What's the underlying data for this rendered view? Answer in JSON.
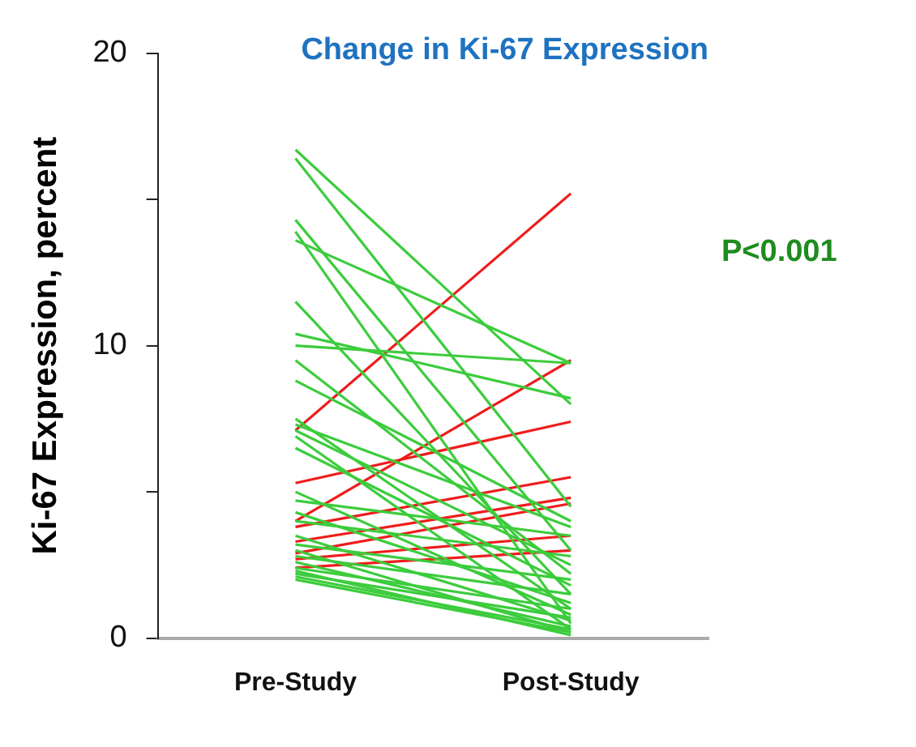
{
  "chart_data": {
    "type": "line",
    "title": "Change in Ki-67 Expression",
    "ylabel": "Ki-67 Expression, percent",
    "annotations": [
      "P<0.001"
    ],
    "categories": [
      "Pre-Study",
      "Post-Study"
    ],
    "ylim": [
      0,
      20
    ],
    "yticks": [
      0,
      {
        "value": 5,
        "label": null
      },
      10,
      {
        "value": 15,
        "label": null
      },
      20
    ],
    "grid": false,
    "legend": false,
    "marker": "none",
    "line_style": "solid",
    "series": [
      {
        "color": "#3ccc3c",
        "values": [
          16.7,
          8.0
        ]
      },
      {
        "color": "#3ccc3c",
        "values": [
          16.4,
          4.5
        ]
      },
      {
        "color": "#3ccc3c",
        "values": [
          14.3,
          3.0
        ]
      },
      {
        "color": "#3ccc3c",
        "values": [
          13.9,
          0.5
        ]
      },
      {
        "color": "#3ccc3c",
        "values": [
          13.6,
          9.4
        ]
      },
      {
        "color": "#3ccc3c",
        "values": [
          11.5,
          1.5
        ]
      },
      {
        "color": "#3ccc3c",
        "values": [
          10.4,
          8.2
        ]
      },
      {
        "color": "#3ccc3c",
        "values": [
          10.0,
          9.4
        ]
      },
      {
        "color": "#3ccc3c",
        "values": [
          9.5,
          2.2
        ]
      },
      {
        "color": "#3ccc3c",
        "values": [
          8.8,
          4.0
        ]
      },
      {
        "color": "#3ccc3c",
        "values": [
          7.5,
          1.0
        ]
      },
      {
        "color": "#3ccc3c",
        "values": [
          7.3,
          3.8
        ]
      },
      {
        "color": "#3ccc3c",
        "values": [
          7.1,
          2.5
        ]
      },
      {
        "color": "#3ccc3c",
        "values": [
          6.9,
          0.3
        ]
      },
      {
        "color": "#3ccc3c",
        "values": [
          6.5,
          1.8
        ]
      },
      {
        "color": "#3ccc3c",
        "values": [
          5.0,
          0.8
        ]
      },
      {
        "color": "#3ccc3c",
        "values": [
          4.7,
          3.5
        ]
      },
      {
        "color": "#3ccc3c",
        "values": [
          4.3,
          1.2
        ]
      },
      {
        "color": "#3ccc3c",
        "values": [
          4.0,
          2.8
        ]
      },
      {
        "color": "#3ccc3c",
        "values": [
          3.5,
          0.6
        ]
      },
      {
        "color": "#3ccc3c",
        "values": [
          3.2,
          2.0
        ]
      },
      {
        "color": "#3ccc3c",
        "values": [
          3.0,
          0.2
        ]
      },
      {
        "color": "#3ccc3c",
        "values": [
          2.8,
          1.5
        ]
      },
      {
        "color": "#3ccc3c",
        "values": [
          2.6,
          0.4
        ]
      },
      {
        "color": "#3ccc3c",
        "values": [
          2.4,
          1.0
        ]
      },
      {
        "color": "#3ccc3c",
        "values": [
          2.3,
          0.1
        ]
      },
      {
        "color": "#3ccc3c",
        "values": [
          2.2,
          0.7
        ]
      },
      {
        "color": "#3ccc3c",
        "values": [
          2.1,
          0.3
        ]
      },
      {
        "color": "#3ccc3c",
        "values": [
          2.0,
          0.2
        ]
      },
      {
        "color": "#ee1c1c",
        "values": [
          7.1,
          15.2
        ]
      },
      {
        "color": "#ee1c1c",
        "values": [
          4.0,
          9.5
        ]
      },
      {
        "color": "#ee1c1c",
        "values": [
          5.3,
          7.4
        ]
      },
      {
        "color": "#ee1c1c",
        "values": [
          3.8,
          5.5
        ]
      },
      {
        "color": "#ee1c1c",
        "values": [
          3.3,
          4.8
        ]
      },
      {
        "color": "#ee1c1c",
        "values": [
          2.9,
          4.6
        ]
      },
      {
        "color": "#ee1c1c",
        "values": [
          2.7,
          3.5
        ]
      },
      {
        "color": "#ee1c1c",
        "values": [
          2.4,
          3.0
        ]
      }
    ]
  }
}
